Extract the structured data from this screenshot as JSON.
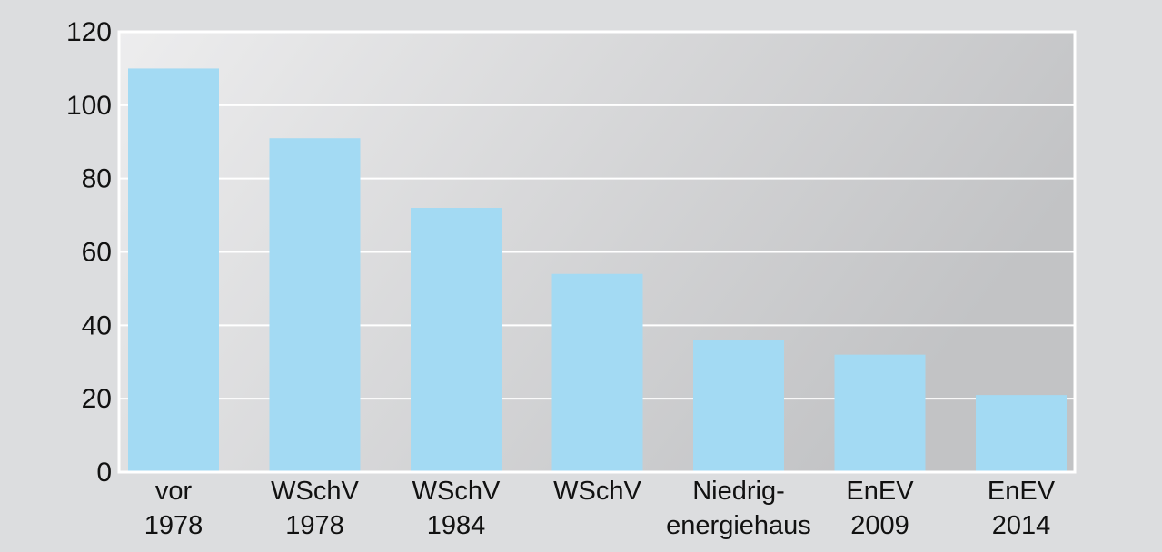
{
  "chart_data": {
    "type": "bar",
    "categories": [
      [
        "vor",
        "1978"
      ],
      [
        "WSchV",
        "1978"
      ],
      [
        "WSchV",
        "1984"
      ],
      [
        "WSchV"
      ],
      [
        "Niedrig-",
        "energiehaus"
      ],
      [
        "EnEV",
        "2009"
      ],
      [
        "EnEV",
        "2014"
      ]
    ],
    "values": [
      110,
      91,
      72,
      54,
      36,
      32,
      21
    ],
    "yticks": [
      0,
      20,
      40,
      60,
      80,
      100,
      120
    ],
    "ylim": [
      0,
      120
    ],
    "grid": true,
    "colors": {
      "bar": "#a3daf3",
      "frame": "#ffffff",
      "gridline": "#ffffff",
      "plot_gradient_start": "#ededee",
      "plot_gradient_end": "#c2c3c5",
      "page_background": "#dcdddf"
    }
  }
}
